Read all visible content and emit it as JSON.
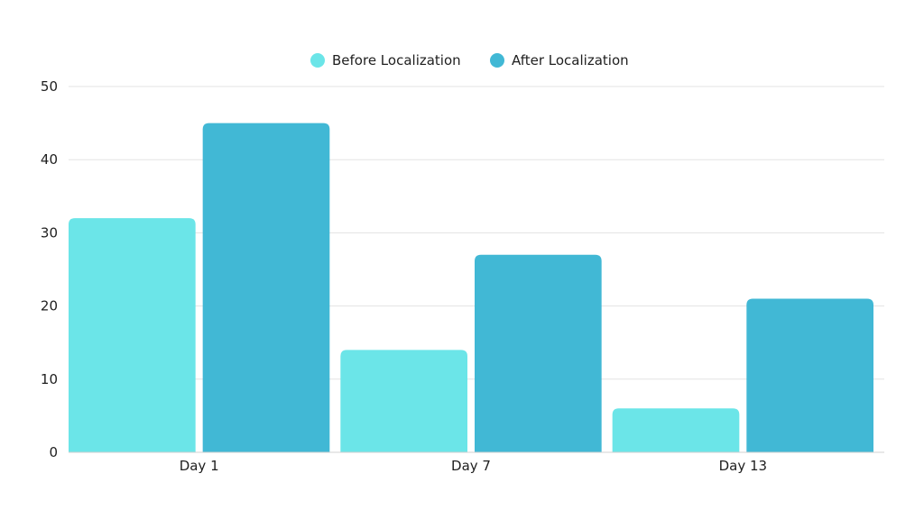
{
  "chart_data": {
    "type": "bar",
    "categories": [
      "Day 1",
      "Day 7",
      "Day 13"
    ],
    "series": [
      {
        "name": "Before Localization",
        "values": [
          32,
          14,
          6
        ],
        "color": "#6BE5E8"
      },
      {
        "name": "After Localization",
        "values": [
          45,
          27,
          21
        ],
        "color": "#41B8D5"
      }
    ],
    "ylim": [
      0,
      50
    ],
    "yticks": [
      0,
      10,
      20,
      30,
      40,
      50
    ],
    "grid": true,
    "legend_position": "top-center"
  }
}
